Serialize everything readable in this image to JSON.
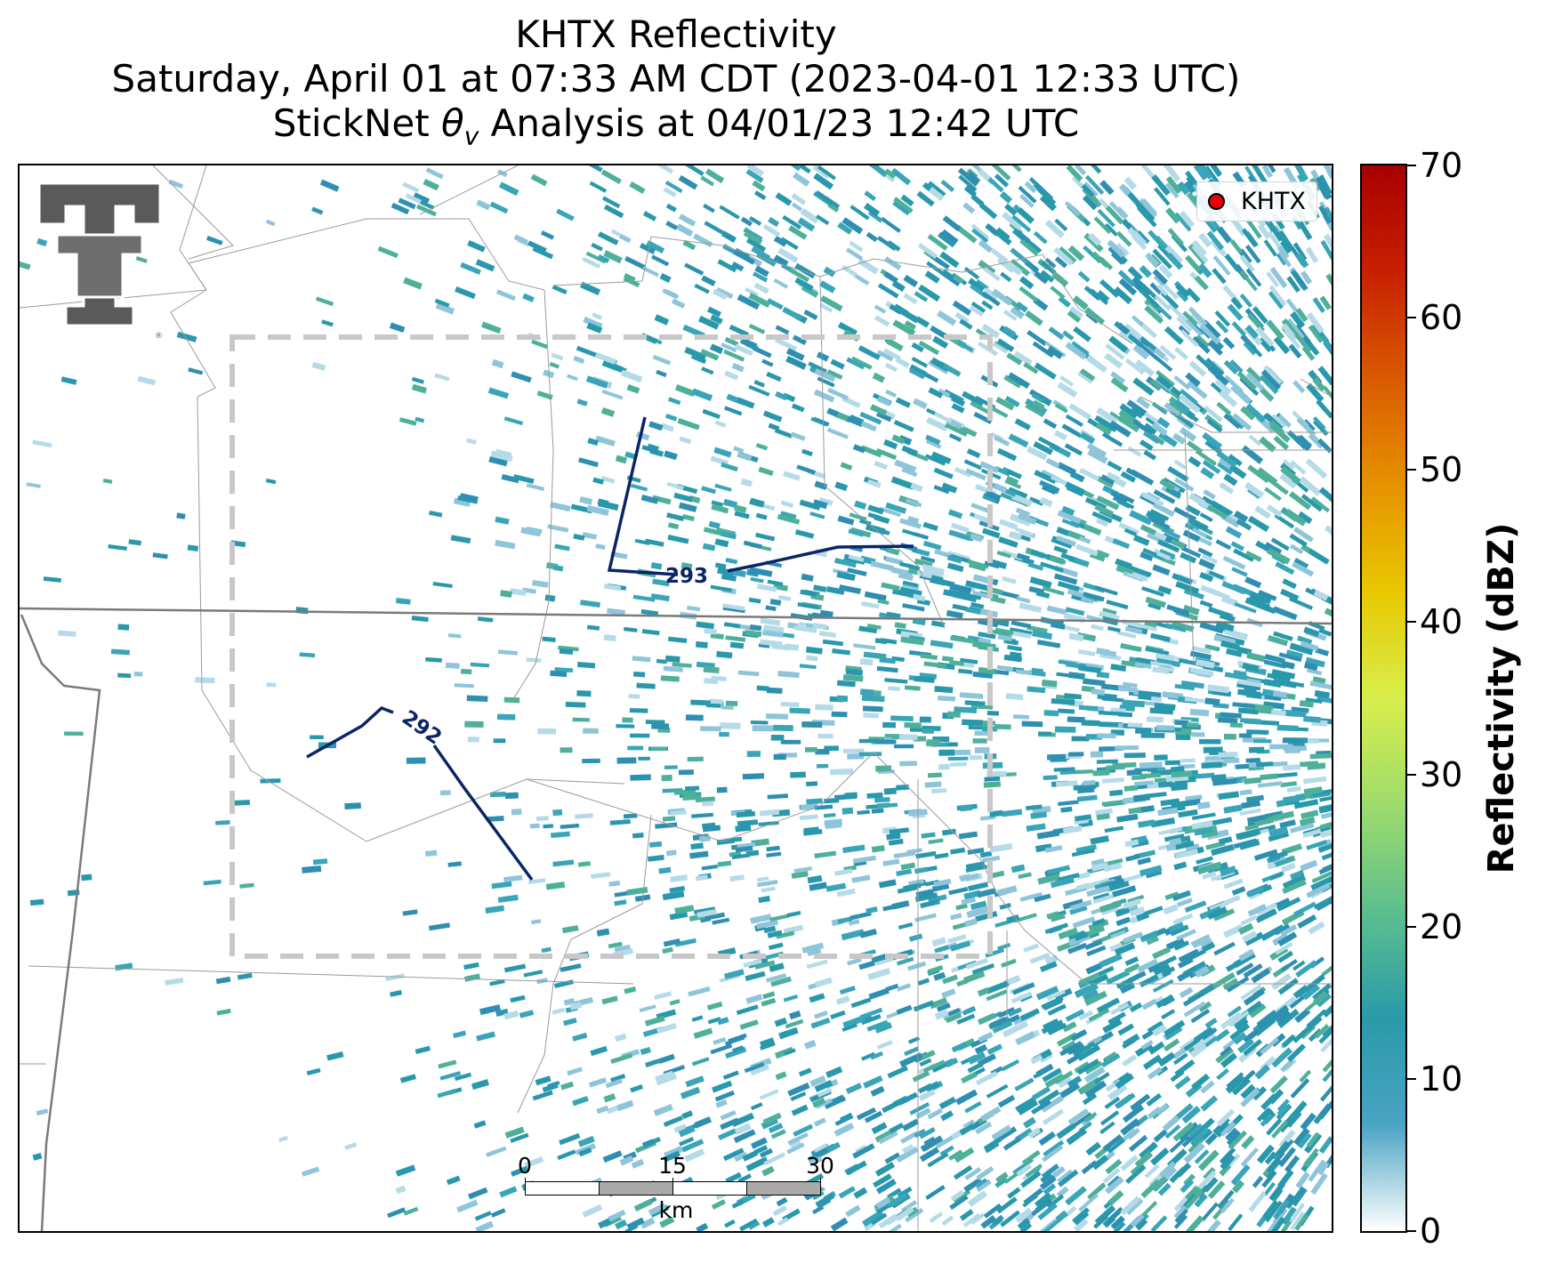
{
  "title": {
    "line1": "KHTX Reflectivity",
    "line2": "Saturday, April 01 at 07:33 AM CDT (2023-04-01 12:33 UTC)",
    "line3_prefix": "StickNet ",
    "line3_symbol": "θ",
    "line3_subscript": "v",
    "line3_suffix": " Analysis at 04/01/23 12:42 UTC"
  },
  "legend": {
    "label": "KHTX",
    "marker_color": "#e8000b"
  },
  "contours": [
    {
      "label": "293"
    },
    {
      "label": "292"
    }
  ],
  "scale_bar": {
    "ticks": [
      "0",
      "15",
      "30"
    ],
    "unit": "km"
  },
  "colorbar": {
    "title": "Reflectivity (dBZ)",
    "min": 0,
    "max": 70,
    "ticks": [
      "0",
      "10",
      "20",
      "30",
      "40",
      "50",
      "60",
      "70"
    ],
    "colors": [
      "#ffffff",
      "#4aa3c4",
      "#2a9aa8",
      "#5dbf8e",
      "#9edc6c",
      "#d9ee4d",
      "#e8c800",
      "#e69200",
      "#d95a00",
      "#c72000",
      "#a80000"
    ]
  },
  "colors": {
    "contour": "#0b2466",
    "echo_main": "#2a98ac",
    "echo_light": "#8fc5da",
    "boundary": "#9a9a9a",
    "domain_box": "#bdbdbd"
  },
  "logo": {
    "name": "texas-tech-logo"
  }
}
